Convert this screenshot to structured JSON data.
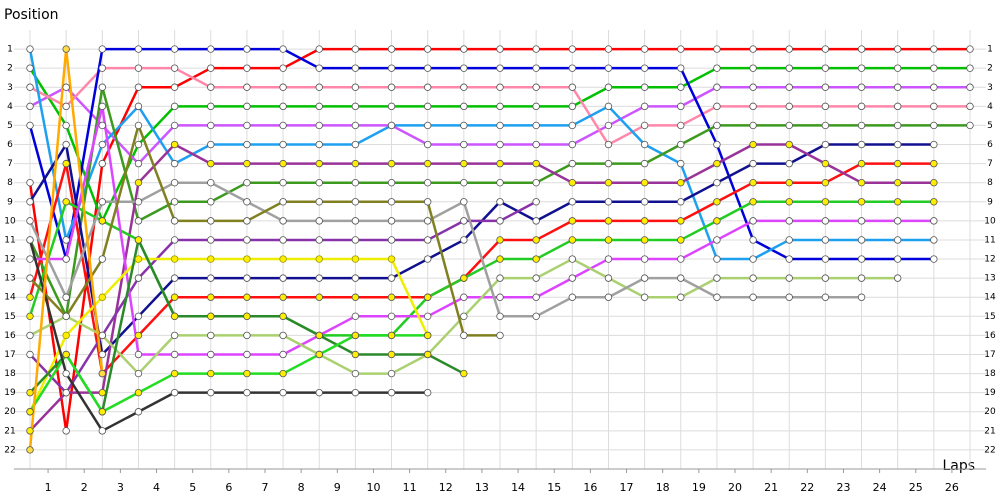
{
  "chart_data": {
    "type": "line",
    "y_axis_label": "Position",
    "x_axis_label": "Laps",
    "x": [
      0,
      1,
      2,
      3,
      4,
      5,
      6,
      7,
      8,
      9,
      10,
      11,
      12,
      13,
      14,
      15,
      16,
      17,
      18,
      19,
      20,
      21,
      22,
      23,
      24,
      25,
      26
    ],
    "xlim": [
      0,
      26
    ],
    "xticks": [
      {
        "value": 0.5,
        "label": "1"
      },
      {
        "value": 1.5,
        "label": "2"
      },
      {
        "value": 2.5,
        "label": "3"
      },
      {
        "value": 3.5,
        "label": "4"
      },
      {
        "value": 4.5,
        "label": "5"
      },
      {
        "value": 5.5,
        "label": "6"
      },
      {
        "value": 6.5,
        "label": "7"
      },
      {
        "value": 7.5,
        "label": "8"
      },
      {
        "value": 8.5,
        "label": "9"
      },
      {
        "value": 9.5,
        "label": "10"
      },
      {
        "value": 10.5,
        "label": "11"
      },
      {
        "value": 11.5,
        "label": "12"
      },
      {
        "value": 12.5,
        "label": "13"
      },
      {
        "value": 13.5,
        "label": "14"
      },
      {
        "value": 14.5,
        "label": "15"
      },
      {
        "value": 15.5,
        "label": "16"
      },
      {
        "value": 16.5,
        "label": "17"
      },
      {
        "value": 17.5,
        "label": "18"
      },
      {
        "value": 18.5,
        "label": "19"
      },
      {
        "value": 19.5,
        "label": "20"
      },
      {
        "value": 20.5,
        "label": "21"
      },
      {
        "value": 21.5,
        "label": "22"
      },
      {
        "value": 22.5,
        "label": "23"
      },
      {
        "value": 23.5,
        "label": "24"
      },
      {
        "value": 24.5,
        "label": "25"
      },
      {
        "value": 25.5,
        "label": "26"
      }
    ],
    "ylim": [
      23,
      0
    ],
    "yticks": [
      1,
      2,
      3,
      4,
      5,
      6,
      7,
      8,
      9,
      10,
      11,
      12,
      13,
      14,
      15,
      16,
      17,
      18,
      19,
      20,
      21,
      22
    ],
    "grid": true,
    "series": [
      {
        "color": "#ff0000",
        "marker_fill": "#ffffff",
        "values": [
          8,
          21,
          7,
          3,
          3,
          2,
          2,
          2,
          1,
          1,
          1,
          1,
          1,
          1,
          1,
          1,
          1,
          1,
          1,
          1,
          1,
          1,
          1,
          1,
          1,
          1,
          1
        ]
      },
      {
        "color": "#00c000",
        "marker_fill": "#ffffff",
        "values": [
          2,
          5,
          10,
          6,
          4,
          4,
          4,
          4,
          4,
          4,
          4,
          4,
          4,
          4,
          4,
          4,
          3,
          3,
          3,
          2,
          2,
          2,
          2,
          2,
          2,
          2,
          2
        ]
      },
      {
        "color": "#cc55ff",
        "marker_fill": "#ffffff",
        "values": [
          4,
          3,
          5,
          7,
          5,
          5,
          5,
          5,
          5,
          5,
          5,
          6,
          6,
          6,
          6,
          6,
          5,
          4,
          4,
          3,
          3,
          3,
          3,
          3,
          3,
          3,
          3
        ]
      },
      {
        "color": "#ff88aa",
        "marker_fill": "#ffffff",
        "values": [
          3,
          4,
          2,
          2,
          2,
          3,
          3,
          3,
          3,
          3,
          3,
          3,
          3,
          3,
          3,
          3,
          6,
          5,
          5,
          4,
          4,
          4,
          4,
          4,
          4,
          4,
          4
        ]
      },
      {
        "color": "#0000dd",
        "marker_fill": "#ffffff",
        "values": [
          5,
          12,
          1,
          1,
          1,
          1,
          1,
          1,
          2,
          2,
          2,
          2,
          2,
          2,
          2,
          2,
          2,
          2,
          2,
          6,
          11,
          12,
          12,
          12,
          12,
          12,
          null
        ]
      },
      {
        "color": "#1ea0f0",
        "marker_fill": "#ffffff",
        "values": [
          1,
          11,
          6,
          4,
          7,
          6,
          6,
          6,
          6,
          6,
          5,
          5,
          5,
          5,
          5,
          5,
          4,
          6,
          7,
          12,
          12,
          11,
          11,
          11,
          11,
          11,
          null
        ]
      },
      {
        "color": "#3c9a1e",
        "marker_fill": "#ffffff",
        "values": [
          11,
          15,
          3,
          10,
          9,
          9,
          8,
          8,
          8,
          8,
          8,
          8,
          8,
          8,
          8,
          7,
          7,
          7,
          6,
          5,
          5,
          5,
          5,
          5,
          5,
          5,
          5
        ]
      },
      {
        "color": "#101090",
        "marker_fill": "#ffffff",
        "values": [
          9,
          6,
          17,
          15,
          13,
          13,
          13,
          13,
          13,
          13,
          13,
          12,
          11,
          9,
          10,
          9,
          9,
          9,
          9,
          8,
          7,
          7,
          6,
          6,
          6,
          6,
          null
        ]
      },
      {
        "color": "#ff1010",
        "marker_fill": "#ffee00",
        "values": [
          14,
          7,
          18,
          16,
          14,
          14,
          14,
          14,
          14,
          14,
          14,
          14,
          13,
          11,
          11,
          10,
          10,
          10,
          10,
          9,
          8,
          8,
          8,
          7,
          7,
          7,
          null
        ]
      },
      {
        "color": "#993399",
        "marker_fill": "#ffee00",
        "values": [
          21,
          19,
          19,
          8,
          6,
          7,
          7,
          7,
          7,
          7,
          7,
          7,
          7,
          7,
          7,
          8,
          8,
          8,
          8,
          7,
          6,
          6,
          7,
          8,
          8,
          8,
          null
        ]
      },
      {
        "color": "#8833aa",
        "marker_fill": "#ffffff",
        "values": [
          17,
          19,
          16,
          13,
          11,
          11,
          11,
          11,
          11,
          11,
          11,
          11,
          10,
          10,
          9,
          null,
          null,
          null,
          null,
          null,
          null,
          null,
          null,
          null,
          null,
          null,
          null
        ]
      },
      {
        "color": "#22cc22",
        "marker_fill": "#ffee00",
        "values": [
          15,
          9,
          10,
          11,
          15,
          15,
          15,
          15,
          16,
          16,
          16,
          14,
          13,
          12,
          12,
          11,
          11,
          11,
          11,
          10,
          9,
          9,
          9,
          9,
          9,
          9,
          null
        ]
      },
      {
        "color": "#dd44ff",
        "marker_fill": "#ffffff",
        "values": [
          12,
          12,
          4,
          17,
          17,
          17,
          17,
          17,
          16,
          15,
          15,
          15,
          14,
          14,
          14,
          13,
          12,
          12,
          12,
          11,
          10,
          10,
          10,
          10,
          10,
          10,
          null
        ]
      },
      {
        "color": "#aad070",
        "marker_fill": "#ffffff",
        "values": [
          16,
          15,
          16,
          18,
          16,
          16,
          16,
          16,
          17,
          18,
          18,
          17,
          15,
          13,
          13,
          12,
          13,
          14,
          14,
          13,
          13,
          13,
          13,
          13,
          13,
          null,
          null
        ]
      },
      {
        "color": "#a0a0a0",
        "marker_fill": "#ffffff",
        "values": [
          10,
          14,
          9,
          9,
          8,
          8,
          9,
          10,
          10,
          10,
          10,
          10,
          9,
          15,
          15,
          14,
          14,
          13,
          13,
          14,
          14,
          14,
          14,
          14,
          null,
          null,
          null
        ]
      },
      {
        "color": "#eeee00",
        "marker_fill": "#ffee00",
        "values": [
          20,
          16,
          14,
          12,
          12,
          12,
          12,
          12,
          12,
          12,
          12,
          16,
          null,
          null,
          null,
          null,
          null,
          null,
          null,
          null,
          null,
          null,
          null,
          null,
          null,
          null,
          null
        ]
      },
      {
        "color": "#808020",
        "marker_fill": "#ffffff",
        "values": [
          13,
          15,
          12,
          5,
          10,
          10,
          10,
          9,
          9,
          9,
          9,
          9,
          16,
          16,
          null,
          null,
          null,
          null,
          null,
          null,
          null,
          null,
          null,
          null,
          null,
          null,
          null
        ]
      },
      {
        "color": "#2a8a2a",
        "marker_fill": "#ffee00",
        "values": [
          19,
          17,
          20,
          11,
          15,
          15,
          15,
          15,
          16,
          17,
          17,
          17,
          18,
          null,
          null,
          null,
          null,
          null,
          null,
          null,
          null,
          null,
          null,
          null,
          null,
          null,
          null
        ]
      },
      {
        "color": "#22dd22",
        "marker_fill": "#ffee00",
        "values": [
          20,
          17,
          20,
          19,
          18,
          18,
          18,
          18,
          17,
          16,
          16,
          16,
          null,
          null,
          null,
          null,
          null,
          null,
          null,
          null,
          null,
          null,
          null,
          null,
          null,
          null,
          null
        ]
      },
      {
        "color": "#333333",
        "marker_fill": "#ffffff",
        "values": [
          11,
          18,
          21,
          20,
          19,
          19,
          19,
          19,
          19,
          19,
          19,
          19,
          null,
          null,
          null,
          null,
          null,
          null,
          null,
          null,
          null,
          null,
          null,
          null,
          null,
          null,
          null
        ]
      },
      {
        "color": "#ffaa00",
        "marker_fill": "#ffdd44",
        "values": [
          22,
          1,
          18,
          null,
          null,
          null,
          null,
          null,
          null,
          null,
          null,
          null,
          null,
          null,
          null,
          null,
          null,
          null,
          null,
          null,
          null,
          null,
          null,
          null,
          null,
          null,
          null
        ]
      }
    ]
  }
}
